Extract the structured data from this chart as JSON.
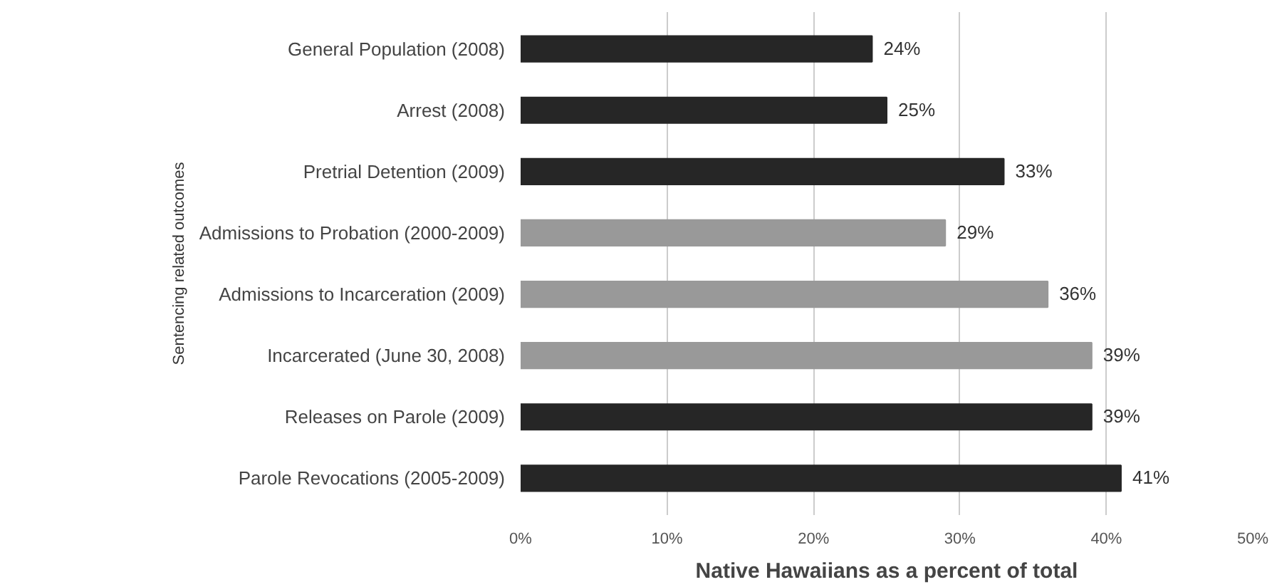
{
  "chart_data": {
    "type": "bar",
    "orientation": "horizontal",
    "categories": [
      "General Population (2008)",
      "Arrest (2008)",
      "Pretrial Detention (2009)",
      "Admissions to Probation (2000-2009)",
      "Admissions to Incarceration (2009)",
      "Incarcerated (June 30, 2008)",
      "Releases on Parole (2009)",
      "Parole Revocations (2005-2009)"
    ],
    "values": [
      24,
      25,
      33,
      29,
      36,
      39,
      39,
      41
    ],
    "colors": [
      "#262626",
      "#262626",
      "#262626",
      "#999999",
      "#999999",
      "#999999",
      "#262626",
      "#262626"
    ],
    "value_labels": [
      "24%",
      "25%",
      "33%",
      "29%",
      "36%",
      "39%",
      "39%",
      "41%"
    ],
    "xlim": [
      0,
      50
    ],
    "xticks": [
      {
        "value": 0,
        "label": "0%"
      },
      {
        "value": 10,
        "label": "10%"
      },
      {
        "value": 20,
        "label": "20%"
      },
      {
        "value": 30,
        "label": "30%"
      },
      {
        "value": 40,
        "label": "40%"
      },
      {
        "value": 50,
        "label": "50%"
      }
    ],
    "xlabel": "Native Hawaiians as a percent of total",
    "grid": "x",
    "annotations": [
      "Sentencing related outcomes"
    ]
  }
}
